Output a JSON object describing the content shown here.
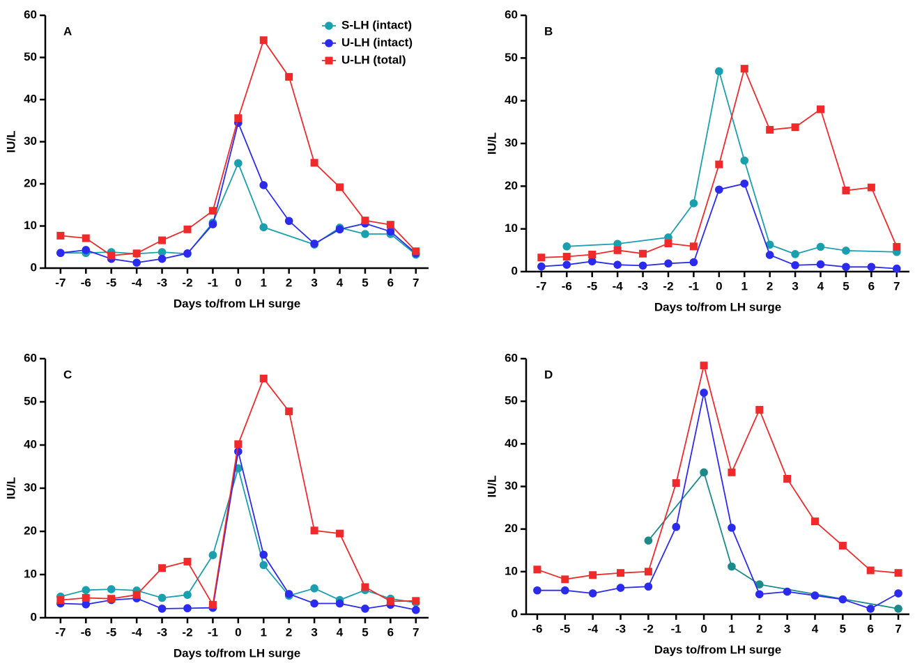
{
  "chart_data": [
    {
      "type": "line",
      "title": "A",
      "xlabel": "Days to/from LH surge",
      "ylabel": "IU/L",
      "legend": "upper right",
      "xlim": [
        -7.6,
        7.5
      ],
      "xticks": [
        -7,
        -6,
        -5,
        -4,
        -3,
        -2,
        -1,
        0,
        1,
        2,
        3,
        4,
        5,
        6,
        7
      ],
      "ylim": [
        0,
        60
      ],
      "yticks": [
        0,
        10,
        20,
        30,
        40,
        50,
        60
      ],
      "series": [
        {
          "name": "S-LH (intact)",
          "color": "#1a9fae",
          "marker": "circle",
          "x": [
            -7,
            -6,
            -5,
            -4,
            -3,
            -2,
            -1,
            0,
            1,
            3,
            4,
            5,
            6,
            7
          ],
          "values": [
            3.6,
            3.6,
            3.8,
            3.4,
            3.8,
            3.4,
            10.8,
            24.9,
            9.7,
            5.6,
            9.6,
            8.1,
            8.1,
            3.2
          ]
        },
        {
          "name": "U-LH (intact)",
          "color": "#2b2bef",
          "marker": "circle",
          "x": [
            -7,
            -6,
            -5,
            -4,
            -3,
            -2,
            -1,
            0,
            1,
            2,
            3,
            4,
            5,
            6,
            7
          ],
          "values": [
            3.6,
            4.3,
            2.2,
            1.3,
            2.2,
            3.5,
            10.4,
            34.5,
            19.7,
            11.2,
            5.8,
            9.2,
            10.6,
            8.7,
            3.5
          ]
        },
        {
          "name": "U-LH (total)",
          "color": "#f02a2a",
          "marker": "square",
          "x": [
            -7,
            -6,
            -5,
            -4,
            -3,
            -2,
            -1,
            0,
            1,
            2,
            3,
            4,
            5,
            6,
            7
          ],
          "values": [
            7.7,
            7.1,
            3.0,
            3.5,
            6.6,
            9.2,
            13.6,
            35.6,
            54.1,
            45.4,
            25.0,
            19.2,
            11.3,
            10.3,
            4.0
          ]
        }
      ]
    },
    {
      "type": "line",
      "title": "B",
      "xlabel": "Days to/from LH surge",
      "ylabel": "IU/L",
      "xlim": [
        -7.6,
        7.5
      ],
      "xticks": [
        -7,
        -6,
        -5,
        -4,
        -3,
        -2,
        -1,
        0,
        1,
        2,
        3,
        4,
        5,
        6,
        7
      ],
      "ylim": [
        0,
        60
      ],
      "yticks": [
        0,
        10,
        20,
        30,
        40,
        50,
        60
      ],
      "series": [
        {
          "color": "#1a9fae",
          "marker": "circle",
          "x": [
            -6,
            -4,
            -2,
            -1,
            0,
            1,
            2,
            3,
            4,
            5,
            7
          ],
          "values": [
            5.9,
            6.5,
            8.0,
            16.0,
            46.9,
            26.0,
            6.3,
            4.1,
            5.8,
            4.9,
            4.6
          ]
        },
        {
          "color": "#2b2bef",
          "marker": "circle",
          "x": [
            -7,
            -6,
            -5,
            -4,
            -3,
            -2,
            -1,
            0,
            1,
            2,
            3,
            4,
            5,
            6,
            7
          ],
          "values": [
            1.2,
            1.6,
            2.4,
            1.6,
            1.4,
            1.9,
            2.2,
            19.2,
            20.6,
            3.9,
            1.5,
            1.7,
            1.1,
            1.1,
            0.7
          ]
        },
        {
          "color": "#f02a2a",
          "marker": "square",
          "x": [
            -7,
            -6,
            -5,
            -4,
            -3,
            -2,
            -1,
            0,
            1,
            2,
            3,
            4,
            5,
            6,
            7
          ],
          "values": [
            3.3,
            3.5,
            4.0,
            5.0,
            4.2,
            6.6,
            5.9,
            25.1,
            47.5,
            33.2,
            33.8,
            38.0,
            19.0,
            19.7,
            5.8
          ]
        }
      ]
    },
    {
      "type": "line",
      "title": "C",
      "xlabel": "Days to/from LH surge",
      "ylabel": "IU/L",
      "xlim": [
        -7.6,
        7.5
      ],
      "xticks": [
        -7,
        -6,
        -5,
        -4,
        -3,
        -2,
        -1,
        0,
        1,
        2,
        3,
        4,
        5,
        6,
        7
      ],
      "ylim": [
        0,
        60
      ],
      "yticks": [
        0,
        10,
        20,
        30,
        40,
        50,
        60
      ],
      "series": [
        {
          "color": "#1a9fae",
          "marker": "circle",
          "x": [
            -7,
            -6,
            -5,
            -4,
            -3,
            -2,
            -1,
            0,
            1,
            2,
            3,
            4,
            5,
            6,
            7
          ],
          "values": [
            4.9,
            6.4,
            6.6,
            6.3,
            4.6,
            5.3,
            14.5,
            34.6,
            12.2,
            5.1,
            6.8,
            4.1,
            6.4,
            4.4,
            3.5
          ]
        },
        {
          "color": "#2b2bef",
          "marker": "circle",
          "x": [
            -7,
            -6,
            -5,
            -4,
            -3,
            -2,
            -1,
            0,
            1,
            2,
            3,
            4,
            5,
            6,
            7
          ],
          "values": [
            3.3,
            3.1,
            4.1,
            4.5,
            2.1,
            2.2,
            2.3,
            38.5,
            14.6,
            5.5,
            3.3,
            3.3,
            2.1,
            3.0,
            1.8
          ]
        },
        {
          "color": "#f02a2a",
          "marker": "square",
          "x": [
            -7,
            -6,
            -5,
            -4,
            -3,
            -2,
            -1,
            0,
            1,
            2,
            3,
            4,
            5,
            6,
            7
          ],
          "values": [
            4.1,
            4.6,
            4.4,
            5.3,
            11.5,
            13.0,
            3.0,
            40.2,
            55.4,
            47.8,
            20.2,
            19.5,
            7.1,
            3.8,
            3.9
          ]
        }
      ]
    },
    {
      "type": "line",
      "title": "D",
      "xlabel": "Days to/from LH surge",
      "ylabel": "IU/L",
      "xlim": [
        -6.4,
        7.4
      ],
      "xticks": [
        -6,
        -5,
        -4,
        -3,
        -2,
        -1,
        0,
        1,
        2,
        3,
        4,
        5,
        6,
        7
      ],
      "ylim": [
        0,
        60
      ],
      "yticks": [
        0,
        10,
        20,
        30,
        40,
        50,
        60
      ],
      "series": [
        {
          "color": "#1a8a8a",
          "marker": "circle",
          "x": [
            -2,
            0,
            1,
            2,
            7
          ],
          "values": [
            17.3,
            33.3,
            11.2,
            7.0,
            1.3
          ]
        },
        {
          "color": "#2b2bef",
          "marker": "circle",
          "x": [
            -6,
            -5,
            -4,
            -3,
            -2,
            -1,
            0,
            1,
            2,
            3,
            4,
            5,
            6,
            7
          ],
          "values": [
            5.6,
            5.6,
            4.9,
            6.2,
            6.5,
            20.5,
            52.0,
            20.3,
            4.7,
            5.3,
            4.4,
            3.5,
            1.3,
            4.9
          ]
        },
        {
          "color": "#f02a2a",
          "marker": "square",
          "x": [
            -6,
            -5,
            -4,
            -3,
            -2,
            -1,
            0,
            1,
            2,
            3,
            4,
            5,
            6,
            7
          ],
          "values": [
            10.5,
            8.2,
            9.2,
            9.7,
            10.0,
            30.8,
            58.4,
            33.3,
            48.0,
            31.8,
            21.8,
            16.1,
            10.3,
            9.7
          ]
        }
      ]
    }
  ]
}
